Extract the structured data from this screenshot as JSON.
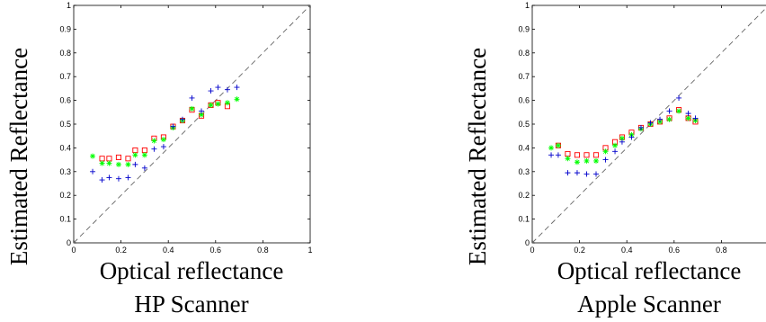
{
  "figure": {
    "panels": [
      {
        "caption": "HP Scanner"
      },
      {
        "caption": "Apple Scanner"
      }
    ]
  },
  "chart_data": [
    {
      "type": "scatter",
      "title": "HP Scanner",
      "xlabel": "Optical reflectance",
      "ylabel": "Estimated Reflectance",
      "xlim": [
        0,
        1
      ],
      "ylim": [
        0,
        1
      ],
      "xticks": [
        "0",
        "0.2",
        "0.4",
        "0.6",
        "0.8",
        "1"
      ],
      "yticks": [
        "0",
        "0.1",
        "0.2",
        "0.3",
        "0.4",
        "0.5",
        "0.6",
        "0.7",
        "0.8",
        "0.9",
        "1"
      ],
      "grid": false,
      "reference_line": {
        "from": [
          0,
          0
        ],
        "to": [
          1,
          1
        ],
        "style": "dashed",
        "color": "#666666"
      },
      "series": [
        {
          "marker": "square",
          "color": "#ff0000",
          "points": [
            [
              0.12,
              0.355
            ],
            [
              0.15,
              0.355
            ],
            [
              0.19,
              0.36
            ],
            [
              0.23,
              0.355
            ],
            [
              0.26,
              0.39
            ],
            [
              0.3,
              0.39
            ],
            [
              0.34,
              0.44
            ],
            [
              0.38,
              0.445
            ],
            [
              0.42,
              0.49
            ],
            [
              0.46,
              0.515
            ],
            [
              0.5,
              0.56
            ],
            [
              0.54,
              0.535
            ],
            [
              0.58,
              0.58
            ],
            [
              0.61,
              0.59
            ],
            [
              0.65,
              0.575
            ]
          ]
        },
        {
          "marker": "asterisk",
          "color": "#00ff00",
          "points": [
            [
              0.08,
              0.365
            ],
            [
              0.12,
              0.335
            ],
            [
              0.15,
              0.335
            ],
            [
              0.19,
              0.33
            ],
            [
              0.23,
              0.33
            ],
            [
              0.26,
              0.37
            ],
            [
              0.3,
              0.37
            ],
            [
              0.34,
              0.43
            ],
            [
              0.38,
              0.435
            ],
            [
              0.42,
              0.485
            ],
            [
              0.46,
              0.515
            ],
            [
              0.5,
              0.565
            ],
            [
              0.54,
              0.54
            ],
            [
              0.58,
              0.58
            ],
            [
              0.61,
              0.585
            ],
            [
              0.65,
              0.59
            ],
            [
              0.69,
              0.605
            ]
          ]
        },
        {
          "marker": "plus",
          "color": "#0000cc",
          "points": [
            [
              0.08,
              0.3
            ],
            [
              0.12,
              0.265
            ],
            [
              0.15,
              0.275
            ],
            [
              0.19,
              0.27
            ],
            [
              0.23,
              0.275
            ],
            [
              0.26,
              0.33
            ],
            [
              0.3,
              0.315
            ],
            [
              0.34,
              0.395
            ],
            [
              0.38,
              0.405
            ],
            [
              0.42,
              0.49
            ],
            [
              0.46,
              0.52
            ],
            [
              0.5,
              0.61
            ],
            [
              0.54,
              0.555
            ],
            [
              0.58,
              0.64
            ],
            [
              0.61,
              0.655
            ],
            [
              0.65,
              0.645
            ],
            [
              0.69,
              0.655
            ]
          ]
        }
      ]
    },
    {
      "type": "scatter",
      "title": "Apple Scanner",
      "xlabel": "Optical reflectance",
      "ylabel": "Estimated Reflectance",
      "xlim": [
        0,
        1
      ],
      "ylim": [
        0,
        1
      ],
      "xticks": [
        "0",
        "0.2",
        "0.4",
        "0.6",
        "0.8"
      ],
      "yticks": [
        "0",
        "0.1",
        "0.2",
        "0.3",
        "0.4",
        "0.5",
        "0.6",
        "0.7",
        "0.8",
        "0.9",
        "1"
      ],
      "grid": false,
      "reference_line": {
        "from": [
          0,
          0
        ],
        "to": [
          1,
          1
        ],
        "style": "dashed",
        "color": "#666666"
      },
      "series": [
        {
          "marker": "square",
          "color": "#ff0000",
          "points": [
            [
              0.11,
              0.41
            ],
            [
              0.15,
              0.375
            ],
            [
              0.19,
              0.37
            ],
            [
              0.23,
              0.37
            ],
            [
              0.27,
              0.37
            ],
            [
              0.31,
              0.4
            ],
            [
              0.35,
              0.425
            ],
            [
              0.38,
              0.445
            ],
            [
              0.42,
              0.465
            ],
            [
              0.46,
              0.485
            ],
            [
              0.5,
              0.5
            ],
            [
              0.54,
              0.51
            ],
            [
              0.58,
              0.525
            ],
            [
              0.62,
              0.56
            ],
            [
              0.66,
              0.525
            ],
            [
              0.69,
              0.51
            ]
          ]
        },
        {
          "marker": "asterisk",
          "color": "#00ff00",
          "points": [
            [
              0.08,
              0.4
            ],
            [
              0.11,
              0.41
            ],
            [
              0.15,
              0.355
            ],
            [
              0.19,
              0.34
            ],
            [
              0.23,
              0.345
            ],
            [
              0.27,
              0.345
            ],
            [
              0.31,
              0.385
            ],
            [
              0.35,
              0.41
            ],
            [
              0.38,
              0.44
            ],
            [
              0.42,
              0.455
            ],
            [
              0.46,
              0.48
            ],
            [
              0.5,
              0.5
            ],
            [
              0.54,
              0.51
            ],
            [
              0.58,
              0.52
            ],
            [
              0.62,
              0.555
            ],
            [
              0.66,
              0.525
            ],
            [
              0.69,
              0.515
            ]
          ]
        },
        {
          "marker": "plus",
          "color": "#0000cc",
          "points": [
            [
              0.08,
              0.37
            ],
            [
              0.11,
              0.37
            ],
            [
              0.15,
              0.295
            ],
            [
              0.19,
              0.295
            ],
            [
              0.23,
              0.29
            ],
            [
              0.27,
              0.29
            ],
            [
              0.31,
              0.35
            ],
            [
              0.35,
              0.385
            ],
            [
              0.38,
              0.425
            ],
            [
              0.42,
              0.445
            ],
            [
              0.46,
              0.485
            ],
            [
              0.5,
              0.505
            ],
            [
              0.54,
              0.52
            ],
            [
              0.58,
              0.555
            ],
            [
              0.62,
              0.61
            ],
            [
              0.66,
              0.545
            ],
            [
              0.69,
              0.525
            ]
          ]
        }
      ]
    }
  ]
}
